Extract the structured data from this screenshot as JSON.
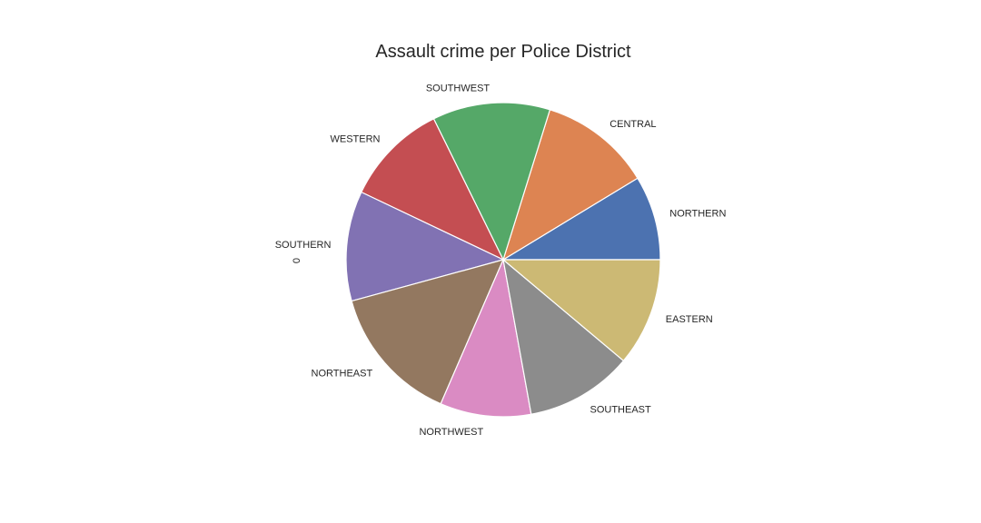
{
  "chart_data": {
    "type": "pie",
    "title": "Assault crime per Police District",
    "ylabel": "0",
    "start_angle_deg": 0,
    "direction": "counterclockwise",
    "categories": [
      "NORTHERN",
      "CENTRAL",
      "SOUTHWEST",
      "WESTERN",
      "SOUTHERN",
      "NORTHEAST",
      "NORTHWEST",
      "SOUTHEAST",
      "EASTERN"
    ],
    "values": [
      8.9,
      11.8,
      12.4,
      10.9,
      11.6,
      14.6,
      9.6,
      11.3,
      11.4
    ],
    "colors": [
      "#4c72b0",
      "#dd8452",
      "#55a868",
      "#c44e52",
      "#8172b3",
      "#937860",
      "#da8bc3",
      "#8c8c8c",
      "#ccb974"
    ]
  }
}
